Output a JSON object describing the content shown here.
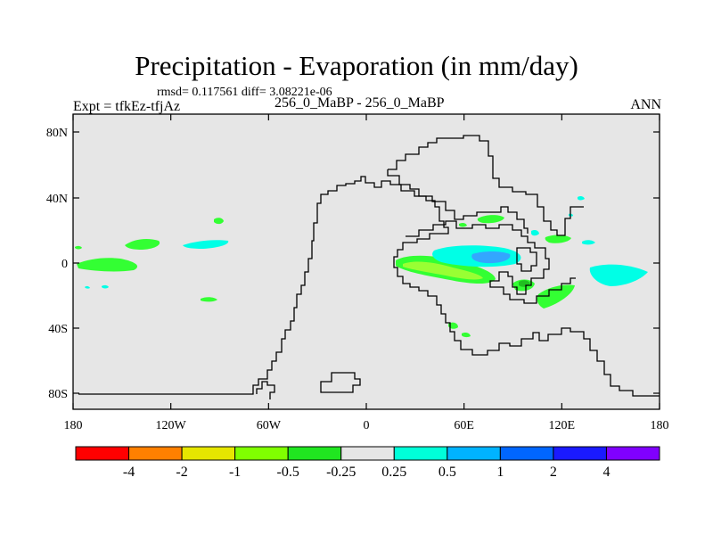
{
  "title": "Precipitation - Evaporation (in mm/day)",
  "stats": "rmsd= 0.117561  diff= 3.08221e-06",
  "left_label": "Expt = tfkEz-tfjAz",
  "center_label": "256_0_MaBP - 256_0_MaBP",
  "right_label": "ANN",
  "map": {
    "background_color": "#e6e6e6",
    "x_ticks": [
      "180",
      "120W",
      "60W",
      "0",
      "60E",
      "120E",
      "180"
    ],
    "y_ticks": [
      "80N",
      "40N",
      "0",
      "40S",
      "80S"
    ]
  },
  "colorbar": {
    "colors": [
      "#ff0000",
      "#ff8000",
      "#e6e600",
      "#80ff00",
      "#20e620",
      "#e6e6e6",
      "#00ffd9",
      "#00b3ff",
      "#0066ff",
      "#1a1aff",
      "#8000ff"
    ],
    "labels": [
      "-4",
      "-2",
      "-1",
      "-0.5",
      "-0.25",
      "0.25",
      "0.5",
      "1",
      "2",
      "4"
    ]
  },
  "colors": {
    "green": "#33ff33",
    "light_green": "#99ff33",
    "cyan": "#00ffe6",
    "blue": "#33a6ff"
  }
}
